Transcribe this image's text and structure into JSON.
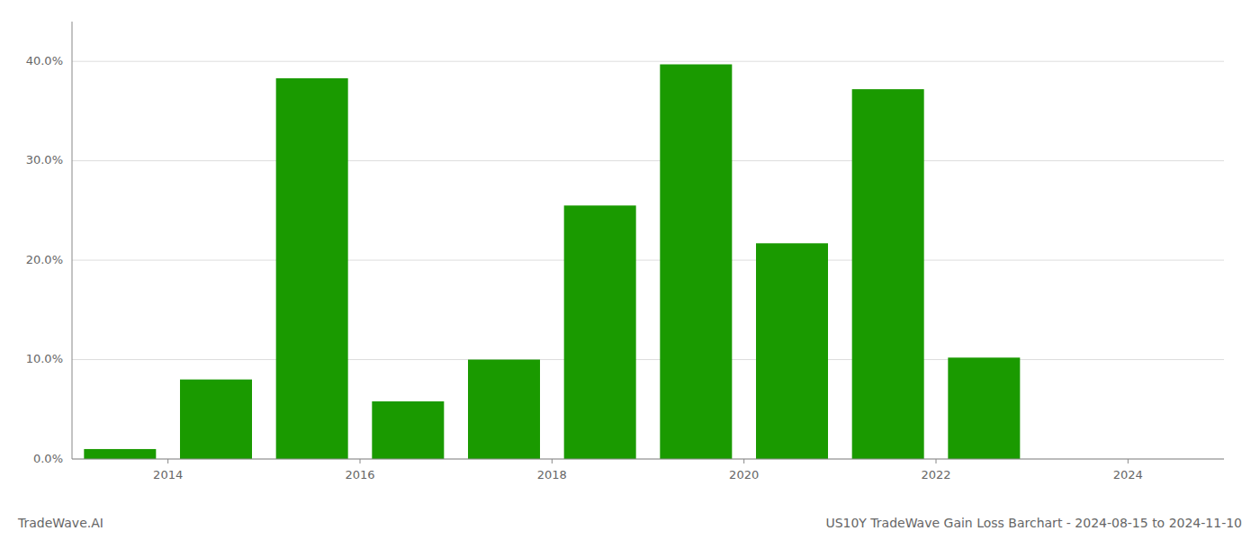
{
  "chart_data": {
    "type": "bar",
    "title": "US10Y TradeWave Gain Loss Barchart - 2024-08-15 to 2024-11-10",
    "annotations": [
      "TradeWave.AI"
    ],
    "x": [
      2013.5,
      2014.5,
      2015.5,
      2016.5,
      2017.5,
      2018.5,
      2019.5,
      2020.5,
      2021.5,
      2022.5,
      2023.5
    ],
    "values": [
      1.0,
      8.0,
      38.3,
      5.8,
      10.0,
      25.5,
      39.7,
      21.7,
      37.2,
      10.2,
      0.0
    ],
    "color": "#1a9a00",
    "xlim": [
      2013.0,
      2025.0
    ],
    "xticks": [
      2014,
      2016,
      2018,
      2020,
      2022,
      2024
    ],
    "ylim": [
      0,
      44
    ],
    "yticks": [
      {
        "value": 0.0,
        "label": "0.0%"
      },
      {
        "value": 10.0,
        "label": "10.0%"
      },
      {
        "value": 20.0,
        "label": "20.0%"
      },
      {
        "value": 30.0,
        "label": "30.0%"
      },
      {
        "value": 40.0,
        "label": "40.0%"
      }
    ],
    "grid": true
  }
}
